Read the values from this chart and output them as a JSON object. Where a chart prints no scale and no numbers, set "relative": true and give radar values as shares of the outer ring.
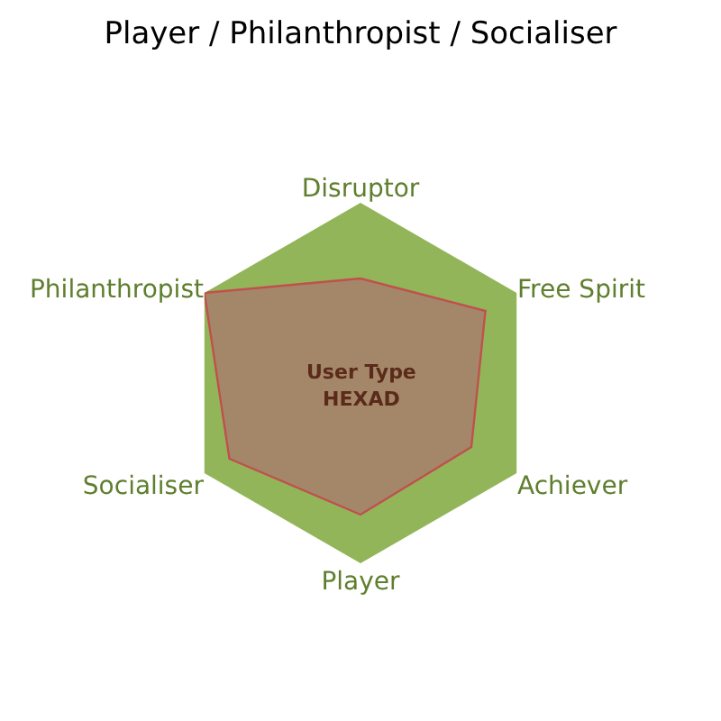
{
  "chart_data": {
    "type": "radar",
    "title": "Player / Philanthropist / Socialiser",
    "relative": true,
    "categories": [
      "Disruptor",
      "Free Spirit",
      "Achiever",
      "Player",
      "Socialiser",
      "Philanthropist"
    ],
    "series": [
      {
        "color": "#c0504d",
        "values": [
          0.58,
          0.8,
          0.71,
          0.73,
          0.84,
          1.0
        ]
      }
    ],
    "annotations": [
      "User Type",
      "HEXAD"
    ]
  }
}
